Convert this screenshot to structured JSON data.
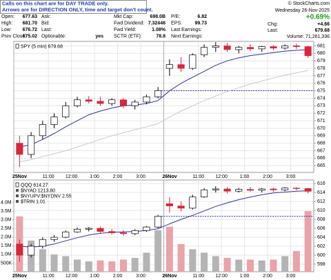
{
  "header": {
    "notice": [
      "Calls on this chart are for DAY TRADE only.",
      "Arrows are for DIRECTION ONLY, time and target don't count."
    ],
    "source": "© StockCharts.com",
    "columns": [
      [
        {
          "label": "Open:",
          "value": "677.63"
        },
        {
          "label": "High:",
          "value": "681.70"
        },
        {
          "label": "Low:",
          "value": "676.72"
        },
        {
          "label": "Prev Close:",
          "value": "675.02"
        }
      ],
      [
        {
          "label": "Ask:"
        },
        {
          "label": "Bid:"
        },
        {
          "label": "Last:"
        },
        {
          "label": "Optionable:",
          "value": "yes"
        }
      ],
      [
        {
          "label": "Mkt Cap:",
          "value": "698.0B"
        },
        {
          "label": "Fwd Dividend:",
          "value": "7.32446"
        },
        {
          "label": "Fwd Yield:",
          "value": "1.08%"
        },
        {
          "label": "SCTR (ETF):",
          "value": "78.8"
        }
      ],
      [
        {
          "label": "P/E:",
          "value": "6.82"
        },
        {
          "label": "EPS:",
          "value": "99.73"
        },
        {
          "label": "Last Earnings:"
        },
        {
          "label": "Next Earnings:"
        }
      ]
    ],
    "date": "Wednesday 26-Nov-2025",
    "change_pct": "+0.69%",
    "fields": [
      {
        "label": "Chg:",
        "value": "+4.66"
      },
      {
        "label": "Last:",
        "value": "679.68"
      }
    ],
    "volume": "Volume: 71,261,336"
  },
  "chart_data": [
    {
      "type": "candlestick",
      "label": "SPY (5 min) 679.68",
      "categories": [
        "25Nov",
        null,
        null,
        "11:00",
        null,
        "12:00",
        null,
        "1:00",
        null,
        "2:00",
        null,
        "3:00",
        null,
        "26Nov",
        null,
        null,
        "11:00",
        null,
        "12:00",
        null,
        "1:00",
        null,
        "2:00",
        null,
        "3:00",
        null
      ],
      "open": [
        668.0,
        666.5,
        669.0,
        670.5,
        671.5,
        673.0,
        673.8,
        673.6,
        673.3,
        673.8,
        673.0,
        673.5,
        674.2,
        678.0,
        678.5,
        678.0,
        679.8,
        680.8,
        681.0,
        680.5,
        680.8,
        680.6,
        680.9,
        680.7,
        681.0,
        680.9
      ],
      "high": [
        669.0,
        669.5,
        671.0,
        672.0,
        673.5,
        674.2,
        674.3,
        674.2,
        674.0,
        674.0,
        673.8,
        674.5,
        675.5,
        679.2,
        679.5,
        680.0,
        681.2,
        681.5,
        681.4,
        681.0,
        681.2,
        681.0,
        681.1,
        681.2,
        681.3,
        681.0
      ],
      "low": [
        664.8,
        666.0,
        668.5,
        670.0,
        671.3,
        672.8,
        673.3,
        673.0,
        673.0,
        672.7,
        672.5,
        673.2,
        674.0,
        677.0,
        677.5,
        677.8,
        679.5,
        680.2,
        680.2,
        680.0,
        680.3,
        680.2,
        680.4,
        680.5,
        680.6,
        679.4
      ],
      "close": [
        666.5,
        669.0,
        670.5,
        671.5,
        673.0,
        673.8,
        673.6,
        673.3,
        673.8,
        673.0,
        673.5,
        674.2,
        675.02,
        678.5,
        678.0,
        679.8,
        680.8,
        681.0,
        680.5,
        680.8,
        680.6,
        680.9,
        680.7,
        681.0,
        680.9,
        679.68
      ],
      "ma": [
        {
          "color": "#2a2fa8",
          "values": [
            667.5,
            667.8,
            668.5,
            669.3,
            670.2,
            671.0,
            671.8,
            672.3,
            672.7,
            673.0,
            673.1,
            673.3,
            673.7,
            675.0,
            676.0,
            676.8,
            677.6,
            678.4,
            679.0,
            679.4,
            679.7,
            679.9,
            680.1,
            680.3,
            680.4,
            680.5
          ]
        },
        {
          "color": "#c8c8c8",
          "values": [
            665.5,
            665.8,
            666.2,
            666.6,
            667.0,
            667.5,
            668.0,
            668.5,
            669.0,
            669.4,
            669.8,
            670.2,
            670.6,
            671.5,
            672.3,
            673.0,
            673.7,
            674.3,
            674.9,
            675.4,
            675.9,
            676.3,
            676.7,
            677.1,
            677.4,
            677.7
          ]
        }
      ],
      "reference_line": 675.02,
      "reference_color": "#2a2fd0",
      "up_color": "#000000",
      "down_color": "#d8263a",
      "ylim": [
        664.1,
        681.6
      ],
      "yticks": [
        665,
        666,
        667,
        668,
        669,
        670,
        671,
        672,
        673,
        674,
        675,
        676,
        677,
        678,
        679,
        680,
        681
      ],
      "grid": true
    },
    {
      "type": "candlestick",
      "label": "QQQ 614.27",
      "indicators": [
        "$NYAD 1213.80",
        "$NYUPV:$NYDNV 2.55",
        "$TRIN 1.01"
      ],
      "categories": [
        "25Nov",
        null,
        null,
        "11:00",
        null,
        "12:00",
        null,
        "1:00",
        null,
        "2:00",
        null,
        "3:00",
        null,
        "26Nov",
        null,
        null,
        "11:00",
        null,
        "12:00",
        null,
        "1:00",
        null,
        "2:00",
        null,
        "3:00",
        null
      ],
      "open": [
        602.5,
        600.0,
        602.0,
        603.5,
        604.0,
        605.2,
        605.8,
        606.0,
        605.3,
        605.0,
        604.8,
        605.5,
        606.3,
        611.5,
        611.0,
        610.5,
        613.0,
        614.6,
        614.8,
        614.3,
        614.7,
        614.5,
        614.8,
        614.6,
        615.0,
        614.9
      ],
      "high": [
        603.5,
        602.5,
        604.0,
        604.5,
        605.5,
        606.2,
        606.3,
        606.4,
        605.8,
        605.6,
        605.8,
        606.5,
        609.0,
        613.0,
        612.0,
        613.5,
        615.0,
        615.4,
        615.2,
        615.0,
        615.2,
        615.0,
        615.1,
        615.2,
        615.2,
        615.0
      ],
      "low": [
        598.5,
        599.5,
        601.5,
        603.0,
        603.8,
        605.0,
        605.3,
        605.0,
        604.6,
        604.3,
        604.5,
        605.2,
        606.0,
        609.5,
        609.8,
        610.2,
        612.8,
        614.0,
        613.8,
        614.0,
        614.2,
        614.0,
        614.2,
        614.3,
        614.5,
        613.8
      ],
      "close": [
        600.0,
        602.0,
        603.5,
        604.0,
        605.2,
        605.8,
        606.0,
        605.3,
        605.0,
        604.8,
        605.5,
        606.3,
        608.7,
        611.0,
        610.5,
        613.0,
        614.6,
        614.8,
        614.3,
        614.7,
        614.5,
        614.8,
        614.6,
        615.0,
        614.9,
        614.27
      ],
      "ma": [
        {
          "color": "#2a2fa8",
          "values": [
            602.0,
            601.8,
            602.0,
            602.5,
            603.2,
            603.9,
            604.5,
            604.9,
            605.1,
            605.2,
            605.3,
            605.5,
            605.9,
            607.0,
            608.0,
            608.9,
            609.9,
            610.9,
            611.7,
            612.4,
            613.0,
            613.5,
            613.9,
            614.1,
            614.3,
            614.4
          ]
        }
      ],
      "reference_line": 608.7,
      "reference_color": "#2a2fd0",
      "up_color": "#000000",
      "down_color": "#d8263a",
      "ylim": [
        596.3,
        616.8
      ],
      "yticks": [
        598,
        600,
        602,
        604,
        606,
        608,
        610,
        612,
        614,
        616
      ],
      "volume": {
        "values": [
          3200000,
          1800000,
          1300000,
          1000000,
          900000,
          700000,
          600000,
          650000,
          600000,
          700000,
          800000,
          1100000,
          2400000,
          2600000,
          1600000,
          1300000,
          1100000,
          900000,
          800000,
          700000,
          700000,
          650000,
          700000,
          900000,
          1200000,
          3500000
        ],
        "color": "#b4b4b4",
        "down_color": "#eaa3a8",
        "ylim": [
          0,
          5300000
        ],
        "yticks": [
          {
            "value": 500000,
            "label": "500K"
          },
          {
            "value": 1000000,
            "label": "1.0M"
          },
          {
            "value": 1500000,
            "label": "1.5M"
          },
          {
            "value": 2000000,
            "label": "2.0M"
          },
          {
            "value": 2500000,
            "label": "2.5M"
          },
          {
            "value": 3000000,
            "label": "3.0M"
          },
          {
            "value": 3500000,
            "label": "3.5M"
          },
          {
            "value": 4000000,
            "label": "4.0M"
          }
        ]
      },
      "grid": true
    }
  ]
}
